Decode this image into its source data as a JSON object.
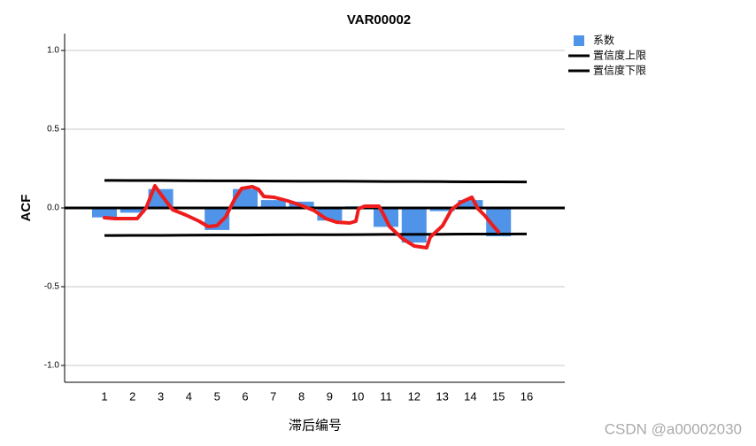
{
  "chart_data": {
    "type": "bar",
    "title": "VAR00002",
    "ylabel": "ACF",
    "xlabel": "滞后编号",
    "categories": [
      "1",
      "2",
      "3",
      "4",
      "5",
      "6",
      "7",
      "8",
      "9",
      "10",
      "11",
      "12",
      "13",
      "14",
      "15",
      "16"
    ],
    "series": [
      {
        "name": "系数",
        "color": "#4f94e8",
        "values": [
          -0.06,
          -0.03,
          0.12,
          0,
          -0.14,
          0.12,
          0.05,
          0.04,
          -0.08,
          0.01,
          -0.12,
          -0.22,
          -0.02,
          0.05,
          -0.18,
          0
        ]
      },
      {
        "name": "置信度上限",
        "color": "#000000",
        "values": [
          0.175,
          0.174,
          0.174,
          0.173,
          0.172,
          0.172,
          0.171,
          0.17,
          0.17,
          0.169,
          0.168,
          0.168,
          0.167,
          0.166,
          0.166,
          0.165
        ]
      },
      {
        "name": "置信度下限",
        "color": "#000000",
        "values": [
          -0.175,
          -0.174,
          -0.174,
          -0.173,
          -0.172,
          -0.172,
          -0.171,
          -0.17,
          -0.17,
          -0.169,
          -0.168,
          -0.168,
          -0.167,
          -0.166,
          -0.166,
          -0.165
        ]
      }
    ],
    "ylim": [
      -1.107,
      1.107
    ],
    "yticks": [
      {
        "value": -1,
        "label": "-1.0"
      },
      {
        "value": -0.5,
        "label": "-0.5"
      },
      {
        "value": 0,
        "label": "0.0"
      },
      {
        "value": 0.5,
        "label": "0.5"
      },
      {
        "value": 1,
        "label": "1.0"
      }
    ],
    "grid": true,
    "legend_position": "right",
    "watermark": "CSDN @a00002030"
  }
}
